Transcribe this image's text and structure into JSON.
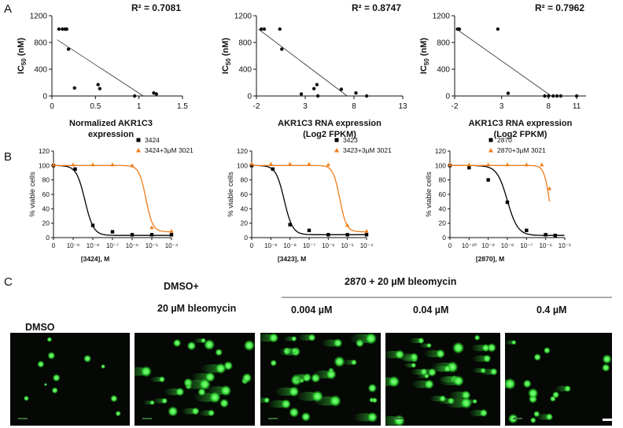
{
  "panels": {
    "a": "A",
    "b": "B",
    "c": "C"
  },
  "row_a": [
    {
      "r2": "R² = 0.7081",
      "xlabel": [
        "Normalized AKR1C3",
        "expression"
      ],
      "xticks": [
        "0",
        "0.5",
        "1",
        "1.5"
      ],
      "xtick_vals": [
        0,
        0.5,
        1,
        1.5
      ],
      "yticks": [
        "0",
        "400",
        "800",
        "1200"
      ],
      "ytick_vals": [
        0,
        400,
        800,
        1200
      ],
      "xlim": [
        0,
        1.5
      ],
      "ylim": [
        0,
        1200
      ],
      "points": [
        [
          0.08,
          1000
        ],
        [
          0.12,
          1000
        ],
        [
          0.15,
          1000
        ],
        [
          0.17,
          1000
        ],
        [
          0.19,
          700
        ],
        [
          0.26,
          120
        ],
        [
          0.53,
          170
        ],
        [
          0.55,
          110
        ],
        [
          0.95,
          0
        ],
        [
          1.17,
          45
        ],
        [
          1.2,
          30
        ]
      ],
      "fit": [
        [
          0.06,
          840
        ],
        [
          1.05,
          0
        ]
      ]
    },
    {
      "r2": "R² = 0.8747",
      "xlabel": [
        "AKR1C3 RNA expression",
        "(Log2 FPKM)"
      ],
      "xticks": [
        "-2",
        "3",
        "8",
        "13"
      ],
      "xtick_vals": [
        -2,
        3,
        8,
        13
      ],
      "yticks": [
        "0",
        "400",
        "800",
        "1200"
      ],
      "ytick_vals": [
        0,
        400,
        800,
        1200
      ],
      "xlim": [
        -2,
        13
      ],
      "ylim": [
        0,
        1200
      ],
      "points": [
        [
          -1.5,
          1000
        ],
        [
          -1.2,
          1000
        ],
        [
          0.4,
          1000
        ],
        [
          0.6,
          700
        ],
        [
          2.6,
          30
        ],
        [
          3.9,
          110
        ],
        [
          4.2,
          170
        ],
        [
          4.3,
          0
        ],
        [
          6.7,
          100
        ],
        [
          8.2,
          45
        ],
        [
          9.3,
          0
        ]
      ],
      "fit": [
        [
          -1.8,
          1000
        ],
        [
          7.3,
          0
        ]
      ]
    },
    {
      "r2": "R² = 0.7962",
      "xlabel": [
        "AKR1C3 RNA expression",
        "(Log2 FPKM)"
      ],
      "xticks": [
        "-2",
        "3",
        "8",
        "11"
      ],
      "xtick_vals": [
        -2,
        3,
        8,
        11
      ],
      "yticks": [
        "0",
        "400",
        "800",
        "1200"
      ],
      "ytick_vals": [
        0,
        400,
        800,
        1200
      ],
      "xlim": [
        -2,
        12
      ],
      "ylim": [
        0,
        1200
      ],
      "points": [
        [
          -1.7,
          1000
        ],
        [
          -1.5,
          1000
        ],
        [
          2.6,
          1000
        ],
        [
          3.7,
          40
        ],
        [
          7.6,
          0
        ],
        [
          8.0,
          0
        ],
        [
          8.5,
          0
        ],
        [
          8.9,
          0
        ],
        [
          9.3,
          0
        ],
        [
          11.0,
          0
        ]
      ],
      "fit": [
        [
          -1.8,
          1000
        ],
        [
          8.3,
          0
        ]
      ]
    }
  ],
  "row_b": [
    {
      "xlabel": "[3424], M",
      "ylabel": "% viable cells",
      "xticks": [
        "0",
        "10⁻⁹",
        "10⁻⁸",
        "10⁻⁷",
        "10⁻⁶",
        "10⁻⁵",
        "10⁻⁴"
      ],
      "yticks": [
        "0",
        "20",
        "40",
        "60",
        "80",
        "100",
        "120"
      ],
      "log_min": -10,
      "log_max": -4,
      "series": [
        {
          "name": "3424",
          "color": "#000000",
          "ic50_log": -8.4,
          "hill": 2.0,
          "bottom": 3,
          "points": [
            [
              -10,
              100
            ],
            [
              -8.9,
              95
            ],
            [
              -8,
              17
            ],
            [
              -7,
              8
            ],
            [
              -6,
              4
            ],
            [
              -5,
              4
            ],
            [
              -4,
              4
            ]
          ]
        },
        {
          "name": "3424+3µM 3021",
          "color": "#f07c1a",
          "ic50_log": -5.3,
          "hill": 2.5,
          "bottom": 8,
          "points": [
            [
              -10,
              101
            ],
            [
              -9,
              101
            ],
            [
              -8,
              101
            ],
            [
              -7,
              101
            ],
            [
              -6,
              100
            ],
            [
              -5,
              14
            ],
            [
              -4,
              9
            ]
          ]
        }
      ]
    },
    {
      "xlabel": "[3423], M",
      "ylabel": "% viable cells",
      "xticks": [
        "0",
        "10⁻⁹",
        "10⁻⁸",
        "10⁻⁷",
        "10⁻⁶",
        "10⁻⁵",
        "10⁻⁴"
      ],
      "yticks": [
        "0",
        "20",
        "40",
        "60",
        "80",
        "100",
        "120"
      ],
      "log_min": -10,
      "log_max": -4,
      "series": [
        {
          "name": "3423",
          "color": "#000000",
          "ic50_log": -8.3,
          "hill": 2.0,
          "bottom": 4,
          "points": [
            [
              -10,
              100
            ],
            [
              -8.9,
              95
            ],
            [
              -8,
              18
            ],
            [
              -7,
              10
            ],
            [
              -6,
              4
            ],
            [
              -5,
              4
            ],
            [
              -4,
              4
            ]
          ]
        },
        {
          "name": "3423+3µM 3021",
          "color": "#f07c1a",
          "ic50_log": -5.4,
          "hill": 2.5,
          "bottom": 8,
          "points": [
            [
              -10,
              102
            ],
            [
              -9,
              102
            ],
            [
              -8,
              102
            ],
            [
              -7,
              102
            ],
            [
              -6,
              101
            ],
            [
              -5,
              17
            ],
            [
              -4,
              9
            ]
          ]
        }
      ]
    },
    {
      "xlabel": "[2870], M",
      "ylabel": "% viable cells",
      "xticks": [
        "0",
        "10⁻¹⁰",
        "10⁻⁹",
        "10⁻⁸",
        "10⁻⁷",
        "10⁻⁶",
        "10⁻⁵"
      ],
      "yticks": [
        "0",
        "20",
        "40",
        "60",
        "80",
        "100",
        "120"
      ],
      "log_min": -11,
      "log_max": -5,
      "series": [
        {
          "name": "2870",
          "color": "#000000",
          "ic50_log": -8.0,
          "hill": 1.6,
          "bottom": 3,
          "points": [
            [
              -11,
              100
            ],
            [
              -10,
              97
            ],
            [
              -9,
              80
            ],
            [
              -8,
              49
            ],
            [
              -7,
              10
            ],
            [
              -6,
              4
            ],
            [
              -5.5,
              3
            ]
          ]
        },
        {
          "name": "2870+3µM 3021",
          "color": "#f07c1a",
          "ic50_log": -5.8,
          "hill": 3,
          "bottom": 0,
          "points": [
            [
              -11,
              101
            ],
            [
              -10,
              101
            ],
            [
              -9,
              101
            ],
            [
              -8,
              101
            ],
            [
              -7,
              101
            ],
            [
              -6.2,
              101
            ],
            [
              -5.8,
              68
            ]
          ]
        }
      ]
    }
  ],
  "row_c": {
    "label_dmso": "DMSO",
    "label_dmso_plus": "DMSO+",
    "label_bleo": "20 µM bleomycin",
    "label_group": "2870 + 20 µM bleomycin",
    "concentrations": [
      "0.004 µM",
      "0.04 µM",
      "0.4 µM"
    ],
    "cell_color": "#3ee83e"
  }
}
